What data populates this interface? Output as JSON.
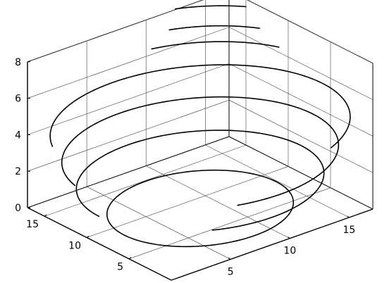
{
  "chart_data": {
    "type": "line",
    "projection": "3d",
    "grid": true,
    "box": true,
    "title": "",
    "xlabel": "",
    "ylabel": "",
    "zlabel": "",
    "xlim": [
      0,
      17
    ],
    "ylim": [
      0,
      17
    ],
    "zlim": [
      0,
      8
    ],
    "x_ticks": [
      {
        "value": 5,
        "label": "5"
      },
      {
        "value": 10,
        "label": "10"
      },
      {
        "value": 15,
        "label": "15"
      }
    ],
    "y_ticks": [
      {
        "value": 5,
        "label": "5"
      },
      {
        "value": 10,
        "label": "10"
      },
      {
        "value": 15,
        "label": "15"
      }
    ],
    "z_ticks": [
      {
        "value": 0,
        "label": "0"
      },
      {
        "value": 2,
        "label": "2"
      },
      {
        "value": 4,
        "label": "4"
      },
      {
        "value": 6,
        "label": "6"
      },
      {
        "value": 8,
        "label": "8"
      }
    ],
    "center": [
      8.5,
      8.5
    ],
    "series": [
      {
        "z": 0,
        "radius": 6.4,
        "arc_from_deg": 0,
        "arc_to_deg": 360
      },
      {
        "z": 1.5,
        "radius": 8.5,
        "arc_from_deg": -120,
        "arc_to_deg": 180
      },
      {
        "z": 3.0,
        "radius": 9.5,
        "arc_from_deg": -110,
        "arc_to_deg": 170
      },
      {
        "z": 4.5,
        "radius": 10.3,
        "arc_from_deg": -65,
        "arc_to_deg": 155
      },
      {
        "z": 6.0,
        "radius": 9.6,
        "arc_from_deg": 20,
        "arc_to_deg": 75
      },
      {
        "z": 7.0,
        "radius": 9.2,
        "arc_from_deg": 28,
        "arc_to_deg": 68
      },
      {
        "z": 8.0,
        "radius": 9.5,
        "arc_from_deg": 35,
        "arc_to_deg": 65
      }
    ]
  }
}
